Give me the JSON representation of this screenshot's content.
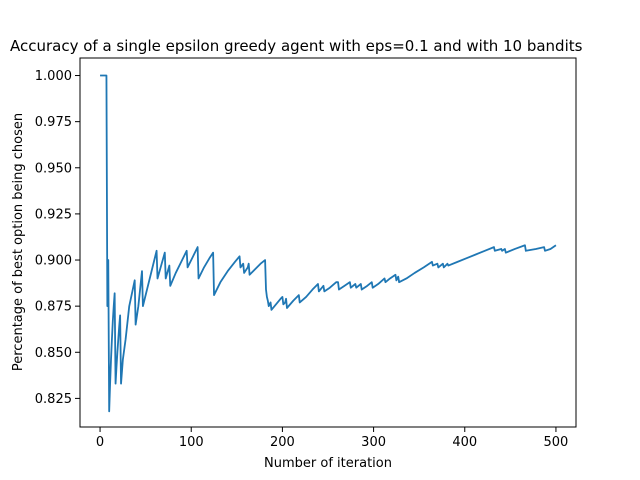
{
  "chart_data": {
    "type": "line",
    "title": "Accuracy of a single epsilon greedy agent with eps=0.1 and with 10 bandits",
    "xlabel": "Number of iteration",
    "ylabel": "Percentage of best option being chosen",
    "xlim": [
      -22,
      522
    ],
    "ylim": [
      0.8095,
      1.0095
    ],
    "xticks": [
      0,
      100,
      200,
      300,
      400,
      500
    ],
    "yticks": [
      0.825,
      0.85,
      0.875,
      0.9,
      0.925,
      0.95,
      0.975,
      1.0
    ],
    "xtick_labels": [
      "0",
      "100",
      "200",
      "300",
      "400",
      "500"
    ],
    "ytick_labels": [
      "0.825",
      "0.850",
      "0.875",
      "0.900",
      "0.925",
      "0.950",
      "0.975",
      "1.000"
    ],
    "grid": false,
    "series": [
      {
        "color": "#1f77b4",
        "points": [
          [
            0,
            1.0
          ],
          [
            1,
            1.0
          ],
          [
            2,
            1.0
          ],
          [
            3,
            1.0
          ],
          [
            4,
            1.0
          ],
          [
            5,
            1.0
          ],
          [
            6,
            1.0
          ],
          [
            7,
            1.0
          ],
          [
            8,
            0.875
          ],
          [
            9,
            0.9
          ],
          [
            10,
            0.818
          ],
          [
            11,
            0.833
          ],
          [
            12,
            0.846
          ],
          [
            13,
            0.857
          ],
          [
            14,
            0.867
          ],
          [
            15,
            0.875
          ],
          [
            16,
            0.882
          ],
          [
            17,
            0.833
          ],
          [
            18,
            0.842
          ],
          [
            19,
            0.85
          ],
          [
            20,
            0.857
          ],
          [
            21,
            0.864
          ],
          [
            22,
            0.87
          ],
          [
            23,
            0.833
          ],
          [
            25,
            0.846
          ],
          [
            28,
            0.857
          ],
          [
            32,
            0.875
          ],
          [
            38,
            0.889
          ],
          [
            39,
            0.865
          ],
          [
            42,
            0.875
          ],
          [
            46,
            0.894
          ],
          [
            47,
            0.875
          ],
          [
            52,
            0.885
          ],
          [
            57,
            0.895
          ],
          [
            62,
            0.905
          ],
          [
            63,
            0.89
          ],
          [
            67,
            0.897
          ],
          [
            71,
            0.904
          ],
          [
            72,
            0.89
          ],
          [
            76,
            0.897
          ],
          [
            77,
            0.886
          ],
          [
            83,
            0.893
          ],
          [
            89,
            0.899
          ],
          [
            95,
            0.905
          ],
          [
            96,
            0.896
          ],
          [
            102,
            0.902
          ],
          [
            107,
            0.907
          ],
          [
            108,
            0.89
          ],
          [
            114,
            0.896
          ],
          [
            120,
            0.901
          ],
          [
            124,
            0.904
          ],
          [
            125,
            0.881
          ],
          [
            132,
            0.888
          ],
          [
            140,
            0.894
          ],
          [
            148,
            0.899
          ],
          [
            153,
            0.902
          ],
          [
            154,
            0.896
          ],
          [
            157,
            0.898
          ],
          [
            158,
            0.893
          ],
          [
            162,
            0.896
          ],
          [
            163,
            0.898
          ],
          [
            164,
            0.892
          ],
          [
            170,
            0.895
          ],
          [
            176,
            0.898
          ],
          [
            181,
            0.9
          ],
          [
            182,
            0.884
          ],
          [
            183,
            0.88
          ],
          [
            184,
            0.878
          ],
          [
            185,
            0.875
          ],
          [
            187,
            0.877
          ],
          [
            188,
            0.873
          ],
          [
            193,
            0.876
          ],
          [
            198,
            0.879
          ],
          [
            200,
            0.88
          ],
          [
            201,
            0.876
          ],
          [
            203,
            0.877
          ],
          [
            204,
            0.879
          ],
          [
            205,
            0.874
          ],
          [
            212,
            0.878
          ],
          [
            218,
            0.881
          ],
          [
            219,
            0.877
          ],
          [
            226,
            0.88
          ],
          [
            233,
            0.884
          ],
          [
            239,
            0.887
          ],
          [
            240,
            0.883
          ],
          [
            245,
            0.886
          ],
          [
            246,
            0.883
          ],
          [
            252,
            0.885
          ],
          [
            259,
            0.888
          ],
          [
            261,
            0.888
          ],
          [
            262,
            0.884
          ],
          [
            268,
            0.886
          ],
          [
            274,
            0.888
          ],
          [
            275,
            0.885
          ],
          [
            280,
            0.887
          ],
          [
            281,
            0.885
          ],
          [
            286,
            0.887
          ],
          [
            287,
            0.884
          ],
          [
            293,
            0.886
          ],
          [
            298,
            0.888
          ],
          [
            299,
            0.885
          ],
          [
            305,
            0.887
          ],
          [
            312,
            0.89
          ],
          [
            313,
            0.888
          ],
          [
            318,
            0.89
          ],
          [
            324,
            0.892
          ],
          [
            325,
            0.889
          ],
          [
            327,
            0.891
          ],
          [
            328,
            0.888
          ],
          [
            336,
            0.89
          ],
          [
            345,
            0.893
          ],
          [
            355,
            0.896
          ],
          [
            364,
            0.899
          ],
          [
            365,
            0.897
          ],
          [
            370,
            0.898
          ],
          [
            371,
            0.896
          ],
          [
            376,
            0.898
          ],
          [
            377,
            0.896
          ],
          [
            381,
            0.898
          ],
          [
            382,
            0.897
          ],
          [
            392,
            0.899
          ],
          [
            402,
            0.901
          ],
          [
            412,
            0.903
          ],
          [
            422,
            0.905
          ],
          [
            432,
            0.907
          ],
          [
            433,
            0.905
          ],
          [
            440,
            0.906
          ],
          [
            441,
            0.905
          ],
          [
            444,
            0.906
          ],
          [
            445,
            0.904
          ],
          [
            455,
            0.906
          ],
          [
            466,
            0.908
          ],
          [
            467,
            0.905
          ],
          [
            478,
            0.906
          ],
          [
            487,
            0.907
          ],
          [
            488,
            0.905
          ],
          [
            494,
            0.906
          ],
          [
            500,
            0.908
          ]
        ]
      }
    ]
  }
}
